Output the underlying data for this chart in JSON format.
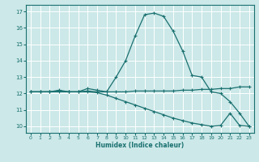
{
  "xlabel": "Humidex (Indice chaleur)",
  "xlim": [
    -0.5,
    23.5
  ],
  "ylim": [
    9.6,
    17.4
  ],
  "yticks": [
    10,
    11,
    12,
    13,
    14,
    15,
    16,
    17
  ],
  "xticks": [
    0,
    1,
    2,
    3,
    4,
    5,
    6,
    7,
    8,
    9,
    10,
    11,
    12,
    13,
    14,
    15,
    16,
    17,
    18,
    19,
    20,
    21,
    22,
    23
  ],
  "bg_color": "#cce8e8",
  "grid_color": "#ffffff",
  "line_color": "#1a7070",
  "curve_top_x": [
    0,
    1,
    2,
    3,
    4,
    5,
    6,
    7,
    8,
    9,
    10,
    11,
    12,
    13,
    14,
    15,
    16,
    17,
    18,
    19,
    20,
    21,
    22,
    23
  ],
  "curve_top_y": [
    12.1,
    12.1,
    12.1,
    12.2,
    12.1,
    12.1,
    12.3,
    12.2,
    12.1,
    13.0,
    14.0,
    15.5,
    16.8,
    16.9,
    16.7,
    15.8,
    14.6,
    13.1,
    13.0,
    12.1,
    12.0,
    11.5,
    10.8,
    10.0
  ],
  "curve_mid_x": [
    0,
    1,
    2,
    3,
    4,
    5,
    6,
    7,
    8,
    9,
    10,
    11,
    12,
    13,
    14,
    15,
    16,
    17,
    18,
    19,
    20,
    21,
    22,
    23
  ],
  "curve_mid_y": [
    12.1,
    12.1,
    12.1,
    12.15,
    12.1,
    12.1,
    12.15,
    12.1,
    12.1,
    12.1,
    12.1,
    12.15,
    12.15,
    12.15,
    12.15,
    12.15,
    12.2,
    12.2,
    12.25,
    12.25,
    12.3,
    12.3,
    12.4,
    12.4
  ],
  "curve_bot_x": [
    0,
    1,
    2,
    3,
    4,
    5,
    6,
    7,
    8,
    9,
    10,
    11,
    12,
    13,
    14,
    15,
    16,
    17,
    18,
    19,
    20,
    21,
    22,
    23
  ],
  "curve_bot_y": [
    12.1,
    12.1,
    12.1,
    12.1,
    12.1,
    12.1,
    12.1,
    12.05,
    11.9,
    11.7,
    11.5,
    11.3,
    11.1,
    10.9,
    10.7,
    10.5,
    10.35,
    10.2,
    10.1,
    10.0,
    10.05,
    10.8,
    10.05,
    10.0
  ]
}
